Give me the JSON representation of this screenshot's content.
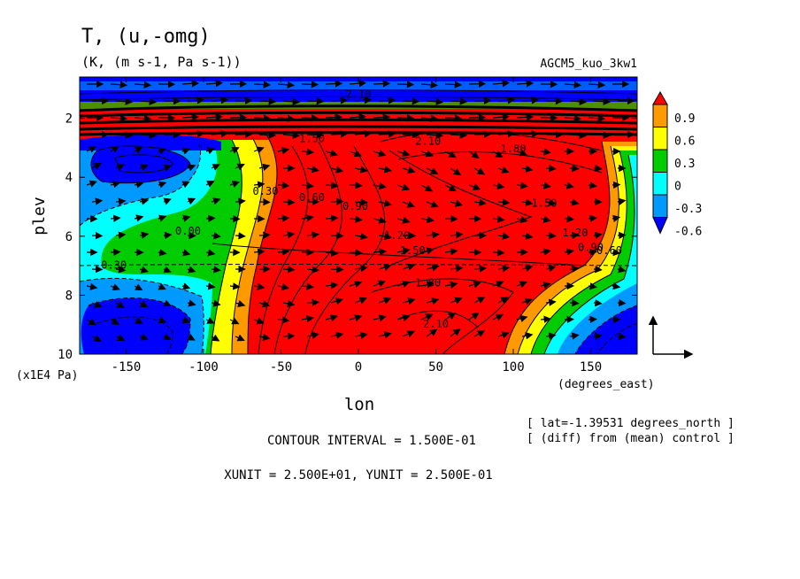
{
  "chart_data": {
    "type": "heatmap",
    "title": "T, (u,-omg)",
    "subtitle": "(K, (m s-1, Pa s-1))",
    "experiment_label": "AGCM5_kuo_3kw1",
    "xlabel": "lon",
    "ylabel": "plev",
    "x_unit_label": "(degrees_east)",
    "y_unit_label": "(x1E4 Pa)",
    "xlim": [
      -180,
      180
    ],
    "ylim": [
      10,
      0.6
    ],
    "x_ticks": [
      -150,
      -100,
      -50,
      0,
      50,
      100,
      150
    ],
    "y_ticks": [
      2,
      4,
      6,
      8,
      10
    ],
    "colorbar": {
      "ticks": [
        "0.9",
        "0.6",
        "0.3",
        "0",
        "-0.3",
        "-0.6"
      ],
      "colors": [
        "#ff0000",
        "#ff9900",
        "#ffff00",
        "#00cc00",
        "#00ffff",
        "#0099ff",
        "#0000ff"
      ]
    },
    "contour_labels": [
      {
        "text": "-0.30",
        "lon": -160,
        "plev": 7.1
      },
      {
        "text": "0.00",
        "lon": -110,
        "plev": 5.95
      },
      {
        "text": "0.30",
        "lon": -60,
        "plev": 4.6
      },
      {
        "text": "0.60",
        "lon": -30,
        "plev": 4.8
      },
      {
        "text": "0.90",
        "lon": -2,
        "plev": 5.1
      },
      {
        "text": "1.20",
        "lon": 25,
        "plev": 6.1
      },
      {
        "text": "1.50",
        "lon": 35,
        "plev": 6.6
      },
      {
        "text": "1.80",
        "lon": 45,
        "plev": 7.7
      },
      {
        "text": "2.10",
        "lon": 50,
        "plev": 9.1
      },
      {
        "text": "1.50",
        "lon": -30,
        "plev": 2.8
      },
      {
        "text": "2.10",
        "lon": 45,
        "plev": 2.9
      },
      {
        "text": "1.80",
        "lon": 100,
        "plev": 3.15
      },
      {
        "text": "1.50",
        "lon": 120,
        "plev": 5.0
      },
      {
        "text": "1.20",
        "lon": 140,
        "plev": 6.0
      },
      {
        "text": "0.90",
        "lon": 150,
        "plev": 6.5
      },
      {
        "text": "0.60",
        "lon": 162,
        "plev": 6.6
      },
      {
        "text": "2.10",
        "lon": 0,
        "plev": 1.3
      }
    ],
    "contour_interval_label": "CONTOUR INTERVAL = 1.500E-01",
    "vector_unit_label": "XUNIT = 2.500E+01, YUNIT = 2.500E-01",
    "latitude_note": "[ lat=-1.39531 degrees_north ]",
    "diff_note": "[ (diff) from (mean) control ]"
  }
}
